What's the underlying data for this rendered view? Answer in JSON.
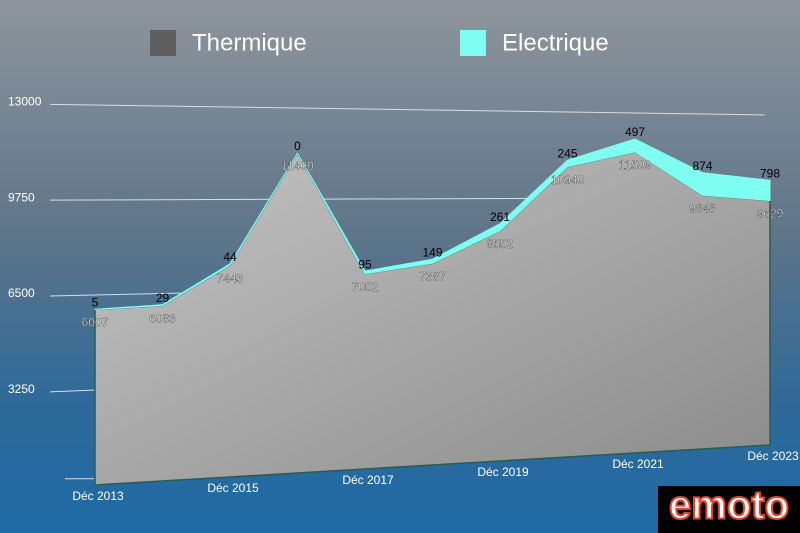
{
  "chart_data": {
    "type": "area",
    "stacked": true,
    "categories": [
      "Déc 2013",
      null,
      "Déc 2015",
      null,
      "Déc 2017",
      null,
      "Déc 2019",
      null,
      "Déc 2021",
      null,
      "Déc 2023"
    ],
    "series": [
      {
        "name": "Thermique",
        "color": "#a9a9a9",
        "values": [
          6007,
          6083,
          7443,
          11400,
          7052,
          7387,
          8552,
          10940,
          11509,
          9848,
          9629
        ]
      },
      {
        "name": "Electrique",
        "color": "#7ffff2",
        "values": [
          5,
          29,
          44,
          0,
          95,
          149,
          261,
          245,
          497,
          874,
          798
        ]
      }
    ],
    "ylim": [
      0,
      13000
    ],
    "yticks": [
      3250,
      6500,
      9750,
      13000
    ],
    "grid": true,
    "legend": "top",
    "logo": "emoto"
  }
}
